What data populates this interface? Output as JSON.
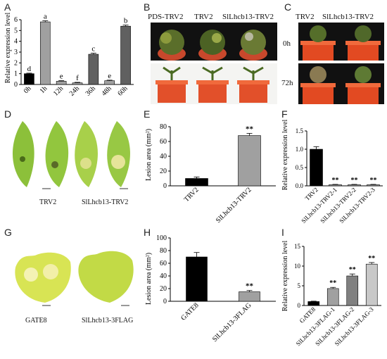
{
  "panels": [
    "A",
    "B",
    "C",
    "D",
    "E",
    "F",
    "G",
    "H",
    "I"
  ],
  "photos": {
    "B": {
      "headers": [
        "PDS-TRV2",
        "TRV2",
        "SlLhcb13-TRV2"
      ]
    },
    "C": {
      "headers": [
        "TRV2",
        "SlLhcb13-TRV2"
      ],
      "rows": [
        "0h",
        "72h"
      ]
    },
    "D": {
      "captions": [
        "TRV2",
        "SlLhcb13-TRV2"
      ]
    },
    "G": {
      "captions": [
        "GATE8",
        "SlLhcb13-3FLAG"
      ]
    }
  },
  "chart_data": [
    {
      "id": "A",
      "type": "bar",
      "ylabel": "Relative expression level",
      "ylim": [
        0,
        6
      ],
      "yticks": [
        0,
        1,
        2,
        3,
        4,
        5,
        6
      ],
      "categories": [
        "0h",
        "1h",
        "12h",
        "24h",
        "36h",
        "48h",
        "60h"
      ],
      "values": [
        1.0,
        5.8,
        0.3,
        0.15,
        2.8,
        0.35,
        5.4
      ],
      "errors": [
        0.05,
        0.1,
        0.05,
        0.05,
        0.1,
        0.05,
        0.1
      ],
      "letters": [
        "d",
        "a",
        "e",
        "f",
        "c",
        "e",
        "b"
      ],
      "colors": [
        "#000000",
        "#a0a0a0",
        "#a0a0a0",
        "#a0a0a0",
        "#606060",
        "#a0a0a0",
        "#606060"
      ]
    },
    {
      "id": "E",
      "type": "bar",
      "ylabel": "Lesion area (mm²)",
      "ylim": [
        0,
        80
      ],
      "yticks": [
        0,
        20,
        40,
        60,
        80
      ],
      "categories": [
        "TRV2",
        "SlLhcb13-TRV2"
      ],
      "values": [
        10,
        68
      ],
      "errors": [
        2,
        3
      ],
      "sig": [
        "",
        "**"
      ],
      "colors": [
        "#000000",
        "#a0a0a0"
      ]
    },
    {
      "id": "F",
      "type": "bar",
      "ylabel": "Relative expression level",
      "ylim": [
        0,
        1.5
      ],
      "yticks": [
        0.0,
        0.5,
        1.0,
        1.5
      ],
      "categories": [
        "TRV2",
        "SlLhcb13-TRV2-1",
        "SlLhcb13-TRV2-2",
        "SlLhcb13-TRV2-3"
      ],
      "values": [
        1.0,
        0.03,
        0.03,
        0.03
      ],
      "errors": [
        0.07,
        0.01,
        0.01,
        0.01
      ],
      "sig": [
        "",
        "**",
        "**",
        "**"
      ],
      "colors": [
        "#000000",
        "#a0a0a0",
        "#a0a0a0",
        "#a0a0a0"
      ]
    },
    {
      "id": "H",
      "type": "bar",
      "ylabel": "Lesion area (mm²)",
      "ylim": [
        0,
        100
      ],
      "yticks": [
        0,
        20,
        40,
        60,
        80,
        100
      ],
      "categories": [
        "GATE8",
        "SlLhcb13-3FLAG"
      ],
      "values": [
        70,
        15
      ],
      "errors": [
        7,
        2
      ],
      "sig": [
        "",
        "**"
      ],
      "colors": [
        "#000000",
        "#a0a0a0"
      ]
    },
    {
      "id": "I",
      "type": "bar",
      "ylabel": "Relative expression level",
      "ylim": [
        0,
        15
      ],
      "yticks": [
        0,
        5,
        10,
        15
      ],
      "categories": [
        "GATE8",
        "SlLhcb13-3FLAG-1",
        "SlLhcb13-3FLAG-2",
        "SlLhcb13-3FLAG-3"
      ],
      "values": [
        1.0,
        4.3,
        7.5,
        10.5
      ],
      "errors": [
        0.1,
        0.3,
        0.5,
        0.4
      ],
      "sig": [
        "",
        "**",
        "**",
        "**"
      ],
      "colors": [
        "#000000",
        "#a0a0a0",
        "#808080",
        "#c8c8c8"
      ]
    }
  ]
}
